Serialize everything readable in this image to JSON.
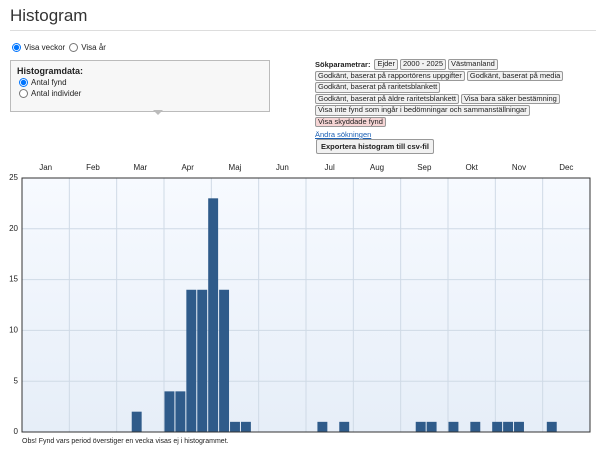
{
  "header": {
    "title": "Histogram"
  },
  "period_options": [
    {
      "label": "Visa veckor",
      "checked": true
    },
    {
      "label": "Visa år",
      "checked": false
    }
  ],
  "histogram_data": {
    "title": "Histogramdata:",
    "options": [
      {
        "label": "Antal fynd",
        "checked": true
      },
      {
        "label": "Antal individer",
        "checked": false
      }
    ]
  },
  "search_parameters": {
    "label": "Sökparametrar:",
    "rows": [
      [
        {
          "text": "Ejder"
        },
        {
          "text": "2000 - 2025"
        },
        {
          "text": "Västmanland"
        }
      ],
      [
        {
          "text": "Godkänt, baserat på rapportörens uppgifter"
        },
        {
          "text": "Godkänt, baserat på media"
        }
      ],
      [
        {
          "text": "Godkänt, baserat på raritetsblankett"
        }
      ],
      [
        {
          "text": "Godkänt, baserat på äldre raritetsblankett"
        },
        {
          "text": "Visa bara säker bestämning"
        }
      ],
      [
        {
          "text": "Visa inte fynd som ingår i bedömningar och sammanställningar"
        }
      ],
      [
        {
          "text": "Visa skyddade fynd",
          "color": "#f6d5d5"
        }
      ]
    ],
    "edit_link": "Ändra sökningen"
  },
  "export_button": "Exportera histogram till csv-fil",
  "chart_data": {
    "type": "bar",
    "months": [
      "Jan",
      "Feb",
      "Mar",
      "Apr",
      "Maj",
      "Jun",
      "Jul",
      "Aug",
      "Sep",
      "Okt",
      "Nov",
      "Dec"
    ],
    "x": [
      10,
      13,
      14,
      15,
      16,
      17,
      18,
      19,
      20,
      27,
      29,
      36,
      37,
      39,
      41,
      43,
      44,
      45,
      48
    ],
    "values": [
      2,
      4,
      4,
      14,
      14,
      23,
      14,
      1,
      1,
      1,
      1,
      1,
      1,
      1,
      1,
      1,
      1,
      1,
      1
    ],
    "xlim": [
      0,
      52
    ],
    "ylim": [
      0,
      25
    ],
    "yticks": [
      0,
      5,
      10,
      15,
      20,
      25
    ],
    "color": "#2f5b8a",
    "grid": true
  },
  "footnote": "Obs! Fynd vars period överstiger en vecka visas ej i histogrammet."
}
